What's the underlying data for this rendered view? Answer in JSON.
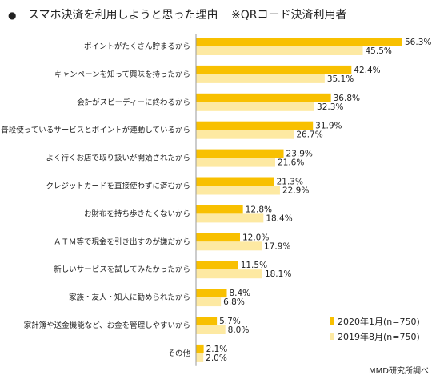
{
  "title": {
    "bullet": "●",
    "main": "スマホ決済を利用しようと思った理由",
    "sub": "※QRコード決済利用者"
  },
  "legend": {
    "items": [
      "2020年1月(n=750)",
      "2019年8月(n=750)"
    ]
  },
  "source": "MMD研究所調べ",
  "colors": {
    "series_2020": "#f8c000",
    "series_2019": "#fde9a2",
    "axis": "#999999"
  },
  "chart_data": {
    "type": "bar",
    "orientation": "horizontal",
    "categories": [
      "ポイントがたくさん貯まるから",
      "キャンペーンを知って興味を持ったから",
      "会計がスピーディーに終わるから",
      "普段使っているサービスとポイントが連動しているから",
      "よく行くお店で取り扱いが開始されたから",
      "クレジットカードを直接使わずに済むから",
      "お財布を持ち歩きたくないから",
      "ＡＴＭ等で現金を引き出すのが嫌だから",
      "新しいサービスを試してみたかったから",
      "家族・友人・知人に勧められたから",
      "家計簿や送金機能など、お金を管理しやすいから",
      "その他"
    ],
    "series": [
      {
        "name": "2020年1月(n=750)",
        "values": [
          56.3,
          42.4,
          36.8,
          31.9,
          23.9,
          21.3,
          12.8,
          12.0,
          11.5,
          8.4,
          5.7,
          2.1
        ]
      },
      {
        "name": "2019年8月(n=750)",
        "values": [
          45.5,
          35.1,
          32.3,
          26.7,
          21.6,
          22.9,
          18.4,
          17.9,
          18.1,
          6.8,
          8.0,
          2.0
        ]
      }
    ],
    "value_suffix": "%",
    "xlim": [
      0,
      56.3
    ]
  }
}
